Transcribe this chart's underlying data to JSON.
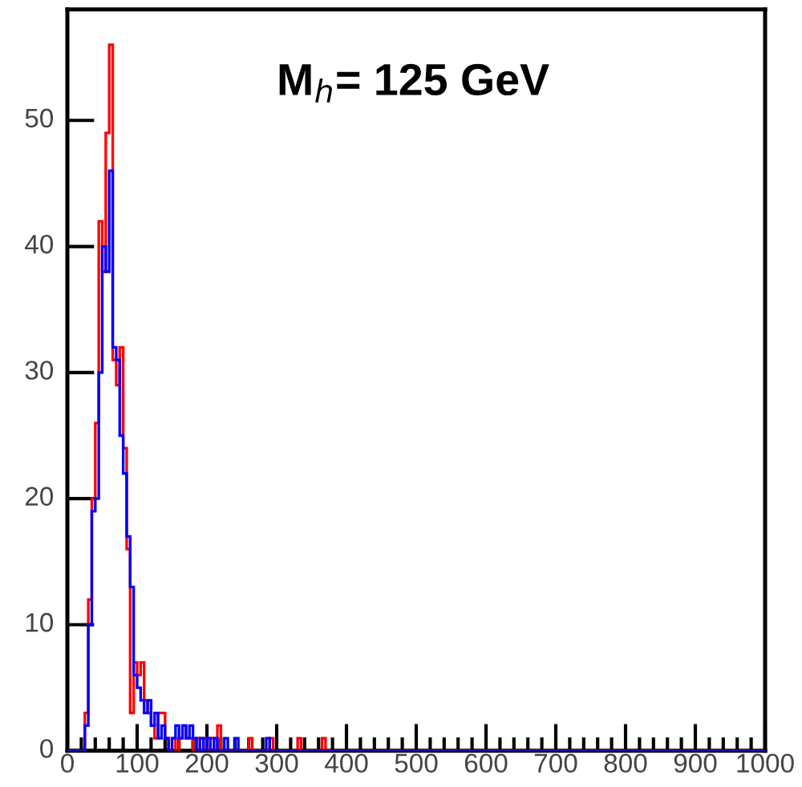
{
  "chart_data": {
    "type": "histogram",
    "annotations": [
      "M$_{h}$= 125 GeV"
    ],
    "bins": [
      0,
      5,
      10,
      15,
      20,
      25,
      30,
      35,
      40,
      45,
      50,
      55,
      60,
      65,
      70,
      75,
      80,
      85,
      90,
      95,
      100,
      105,
      110,
      115,
      120,
      125,
      130,
      135,
      140,
      145,
      150,
      155,
      160,
      165,
      170,
      175,
      180,
      185,
      190,
      195,
      200,
      205,
      210,
      215,
      220,
      225,
      230,
      235,
      240,
      245,
      250,
      255,
      260,
      265,
      270,
      275,
      280,
      285,
      290,
      295,
      300,
      305,
      310,
      315,
      320,
      325,
      330,
      335,
      340,
      345,
      350,
      355,
      360,
      365,
      370,
      375,
      380,
      385,
      390,
      395,
      400,
      405,
      410,
      415,
      420,
      425,
      430,
      435,
      440,
      445,
      450,
      455,
      460,
      465,
      470,
      475,
      480,
      485,
      490,
      495,
      500,
      505,
      510,
      515,
      520,
      525,
      530,
      535,
      540,
      545,
      550,
      555,
      560,
      565,
      570,
      575,
      580,
      585,
      590,
      595,
      600,
      605,
      610,
      615,
      620,
      625,
      630,
      635,
      640,
      645,
      650,
      655,
      660,
      665,
      670,
      675,
      680,
      685,
      690,
      695,
      700,
      705,
      710,
      715,
      720,
      725,
      730,
      735,
      740,
      745,
      750,
      755,
      760,
      765,
      770,
      775,
      780,
      785,
      790,
      795,
      800,
      805,
      810,
      815,
      820,
      825,
      830,
      835,
      840,
      845,
      850,
      855,
      860,
      865,
      870,
      875,
      880,
      885,
      890,
      895,
      900,
      905,
      910,
      915,
      920,
      925,
      930,
      935,
      940,
      945,
      950,
      955,
      960,
      965,
      970,
      975,
      980,
      985,
      990,
      995,
      1000
    ],
    "series": [
      {
        "color": "#ff0000",
        "values": [
          0,
          0,
          0,
          0,
          0,
          3,
          12,
          20,
          26,
          42,
          38,
          49,
          56,
          31,
          29,
          32,
          24,
          16,
          3,
          7,
          6,
          7,
          4,
          3,
          2,
          1,
          3,
          3,
          1,
          0,
          1,
          0,
          1,
          2,
          1,
          1,
          0,
          1,
          0,
          1,
          0,
          1,
          0,
          2,
          0,
          0,
          0,
          0,
          0,
          0,
          0,
          0,
          1,
          0,
          0,
          0,
          0,
          0,
          1,
          0,
          0,
          0,
          0,
          0,
          0,
          0,
          1,
          0,
          0,
          0,
          0,
          0,
          0,
          1,
          0,
          0,
          0,
          0,
          0,
          0,
          0,
          0,
          0,
          0,
          0,
          0,
          0,
          0,
          0,
          0,
          0,
          0,
          0,
          0,
          0,
          0,
          0,
          0,
          0,
          0,
          0,
          0,
          0,
          0,
          0,
          0,
          0,
          0,
          0,
          0,
          0,
          0,
          0,
          0,
          0,
          0,
          0,
          0,
          0,
          0,
          0,
          0,
          0,
          0,
          0,
          0,
          0,
          0,
          0,
          0,
          0,
          0,
          0,
          0,
          0,
          0,
          0,
          0,
          0,
          0,
          0,
          0,
          0,
          0,
          0,
          0,
          0,
          0,
          0,
          0,
          0,
          0,
          0,
          0,
          0,
          0,
          0,
          0,
          0,
          0,
          0,
          0,
          0,
          0,
          0,
          0,
          0,
          0,
          0,
          0,
          0,
          0,
          0,
          0,
          0,
          0,
          0,
          0,
          0,
          0,
          0,
          0,
          0,
          0,
          0,
          0,
          0,
          0,
          0,
          0,
          0,
          0,
          0,
          0,
          0,
          0,
          0,
          0,
          0,
          0
        ]
      },
      {
        "color": "#0000ff",
        "values": [
          0,
          0,
          0,
          0,
          0,
          2,
          10,
          19,
          20,
          30,
          40,
          38,
          46,
          32,
          31,
          25,
          22,
          17,
          13,
          6,
          5,
          4,
          3,
          4,
          2,
          3,
          1,
          2,
          1,
          0,
          1,
          2,
          1,
          2,
          1,
          2,
          1,
          0,
          1,
          0,
          1,
          0,
          1,
          0,
          0,
          1,
          0,
          0,
          1,
          0,
          0,
          0,
          0,
          0,
          0,
          0,
          0,
          1,
          0,
          0,
          0,
          0,
          0,
          0,
          0,
          0,
          0,
          0,
          0,
          0,
          0,
          0,
          0,
          0,
          0,
          0,
          0,
          0,
          0,
          0,
          0,
          0,
          0,
          0,
          0,
          0,
          0,
          0,
          0,
          0,
          0,
          0,
          0,
          0,
          0,
          0,
          0,
          0,
          0,
          0,
          0,
          0,
          0,
          0,
          0,
          0,
          0,
          0,
          0,
          0,
          0,
          0,
          0,
          0,
          0,
          0,
          0,
          0,
          0,
          0,
          0,
          0,
          0,
          0,
          0,
          0,
          0,
          0,
          0,
          0,
          0,
          0,
          0,
          0,
          0,
          0,
          0,
          0,
          0,
          0,
          0,
          0,
          0,
          0,
          0,
          0,
          0,
          0,
          0,
          0,
          0,
          0,
          0,
          0,
          0,
          0,
          0,
          0,
          0,
          0,
          0,
          0,
          0,
          0,
          0,
          0,
          0,
          0,
          0,
          0,
          0,
          0,
          0,
          0,
          0,
          0,
          0,
          0,
          0,
          0,
          0,
          0,
          0,
          0,
          0,
          0,
          0,
          0,
          0,
          0,
          0,
          0,
          0,
          0,
          0,
          0,
          0,
          0,
          0,
          0
        ]
      }
    ],
    "xlim": [
      0,
      1000
    ],
    "ylim": [
      0,
      58.8
    ],
    "xticks": [
      0,
      {
        "value": 20,
        "label": null
      },
      {
        "value": 40,
        "label": null
      },
      {
        "value": 60,
        "label": null
      },
      {
        "value": 80,
        "label": null
      },
      100,
      {
        "value": 120,
        "label": null
      },
      {
        "value": 140,
        "label": null
      },
      {
        "value": 160,
        "label": null
      },
      {
        "value": 180,
        "label": null
      },
      200,
      {
        "value": 220,
        "label": null
      },
      {
        "value": 240,
        "label": null
      },
      {
        "value": 260,
        "label": null
      },
      {
        "value": 280,
        "label": null
      },
      300,
      {
        "value": 320,
        "label": null
      },
      {
        "value": 340,
        "label": null
      },
      {
        "value": 360,
        "label": null
      },
      {
        "value": 380,
        "label": null
      },
      400,
      {
        "value": 420,
        "label": null
      },
      {
        "value": 440,
        "label": null
      },
      {
        "value": 460,
        "label": null
      },
      {
        "value": 480,
        "label": null
      },
      500,
      {
        "value": 520,
        "label": null
      },
      {
        "value": 540,
        "label": null
      },
      {
        "value": 560,
        "label": null
      },
      {
        "value": 580,
        "label": null
      },
      600,
      {
        "value": 620,
        "label": null
      },
      {
        "value": 640,
        "label": null
      },
      {
        "value": 660,
        "label": null
      },
      {
        "value": 680,
        "label": null
      },
      700,
      {
        "value": 720,
        "label": null
      },
      {
        "value": 740,
        "label": null
      },
      {
        "value": 760,
        "label": null
      },
      {
        "value": 780,
        "label": null
      },
      800,
      {
        "value": 820,
        "label": null
      },
      {
        "value": 840,
        "label": null
      },
      {
        "value": 860,
        "label": null
      },
      {
        "value": 880,
        "label": null
      },
      900,
      {
        "value": 920,
        "label": null
      },
      {
        "value": 940,
        "label": null
      },
      {
        "value": 960,
        "label": null
      },
      {
        "value": 980,
        "label": null
      },
      1000
    ],
    "yticks": [
      0,
      10,
      20,
      30,
      40,
      50
    ],
    "grid": false,
    "legend": false
  }
}
